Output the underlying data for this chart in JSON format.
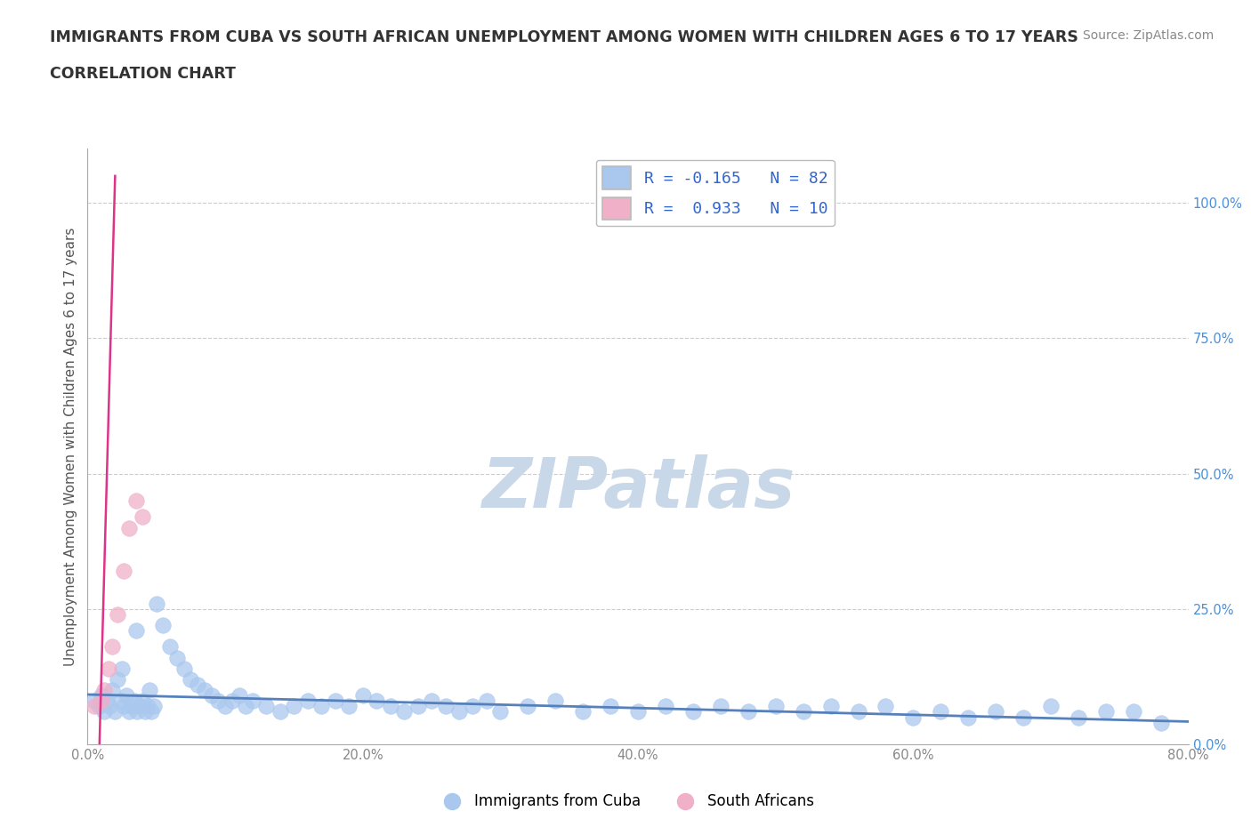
{
  "title": "IMMIGRANTS FROM CUBA VS SOUTH AFRICAN UNEMPLOYMENT AMONG WOMEN WITH CHILDREN AGES 6 TO 17 YEARS",
  "subtitle": "CORRELATION CHART",
  "source": "Source: ZipAtlas.com",
  "ylabel": "Unemployment Among Women with Children Ages 6 to 17 years",
  "xlim": [
    0.0,
    0.8
  ],
  "ylim": [
    0.0,
    1.1
  ],
  "ytick_labels": [
    "0.0%",
    "25.0%",
    "50.0%",
    "75.0%",
    "100.0%"
  ],
  "ytick_values": [
    0.0,
    0.25,
    0.5,
    0.75,
    1.0
  ],
  "xtick_labels": [
    "0.0%",
    "20.0%",
    "40.0%",
    "60.0%",
    "80.0%"
  ],
  "xtick_values": [
    0.0,
    0.2,
    0.4,
    0.6,
    0.8
  ],
  "blue_face_color": "#aac8ee",
  "blue_edge_color": "#aac8ee",
  "pink_face_color": "#f0b0c8",
  "pink_edge_color": "#f0b0c8",
  "blue_line_color": "#5580bb",
  "pink_line_color": "#dd3388",
  "ytick_color": "#4a90d9",
  "xtick_color": "#888888",
  "legend_blue_label": "R = -0.165   N = 82",
  "legend_pink_label": "R =  0.933   N = 10",
  "series1_label": "Immigrants from Cuba",
  "series2_label": "South Africans",
  "grid_color": "#cccccc",
  "watermark_color": "#c8d8e8",
  "blue_scatter_x": [
    0.005,
    0.008,
    0.01,
    0.012,
    0.014,
    0.016,
    0.018,
    0.02,
    0.022,
    0.024,
    0.026,
    0.028,
    0.03,
    0.032,
    0.034,
    0.036,
    0.038,
    0.04,
    0.042,
    0.044,
    0.046,
    0.048,
    0.05,
    0.055,
    0.06,
    0.065,
    0.07,
    0.075,
    0.08,
    0.085,
    0.09,
    0.095,
    0.1,
    0.105,
    0.11,
    0.115,
    0.12,
    0.13,
    0.14,
    0.15,
    0.16,
    0.17,
    0.18,
    0.19,
    0.2,
    0.21,
    0.22,
    0.23,
    0.24,
    0.25,
    0.26,
    0.27,
    0.28,
    0.29,
    0.3,
    0.32,
    0.34,
    0.36,
    0.38,
    0.4,
    0.42,
    0.44,
    0.46,
    0.48,
    0.5,
    0.52,
    0.54,
    0.56,
    0.58,
    0.6,
    0.62,
    0.64,
    0.66,
    0.68,
    0.7,
    0.72,
    0.74,
    0.76,
    0.78,
    0.025,
    0.035,
    0.045
  ],
  "blue_scatter_y": [
    0.08,
    0.07,
    0.09,
    0.06,
    0.08,
    0.07,
    0.1,
    0.06,
    0.12,
    0.08,
    0.07,
    0.09,
    0.06,
    0.07,
    0.08,
    0.06,
    0.07,
    0.08,
    0.06,
    0.07,
    0.06,
    0.07,
    0.26,
    0.22,
    0.18,
    0.16,
    0.14,
    0.12,
    0.11,
    0.1,
    0.09,
    0.08,
    0.07,
    0.08,
    0.09,
    0.07,
    0.08,
    0.07,
    0.06,
    0.07,
    0.08,
    0.07,
    0.08,
    0.07,
    0.09,
    0.08,
    0.07,
    0.06,
    0.07,
    0.08,
    0.07,
    0.06,
    0.07,
    0.08,
    0.06,
    0.07,
    0.08,
    0.06,
    0.07,
    0.06,
    0.07,
    0.06,
    0.07,
    0.06,
    0.07,
    0.06,
    0.07,
    0.06,
    0.07,
    0.05,
    0.06,
    0.05,
    0.06,
    0.05,
    0.07,
    0.05,
    0.06,
    0.06,
    0.04,
    0.14,
    0.21,
    0.1
  ],
  "pink_scatter_x": [
    0.005,
    0.01,
    0.012,
    0.015,
    0.018,
    0.022,
    0.026,
    0.03,
    0.035,
    0.04
  ],
  "pink_scatter_y": [
    0.07,
    0.08,
    0.1,
    0.14,
    0.18,
    0.24,
    0.32,
    0.4,
    0.45,
    0.42
  ]
}
